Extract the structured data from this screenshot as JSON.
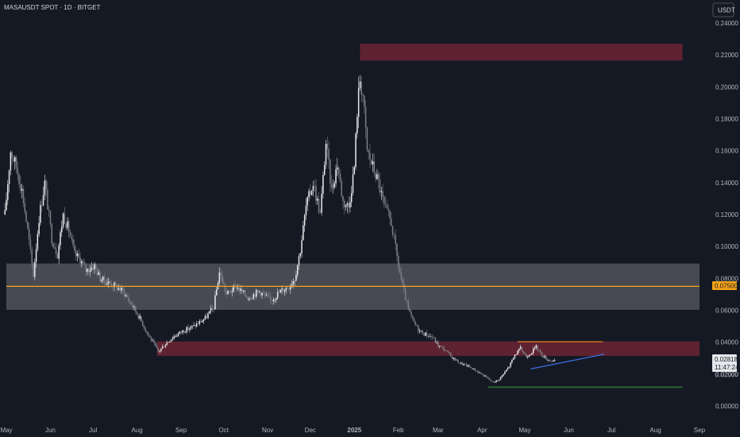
{
  "header": {
    "symbol_title": "MASAUSDT SPOT · 1D · BITGET",
    "currency_button": "USDT"
  },
  "price_tags": {
    "level_label": "0.07500",
    "last_price": "0.02818",
    "countdown": "11:47:24",
    "partial_label": "0.02000"
  },
  "colors": {
    "background": "#151924",
    "candle_up": "#e9e9ec",
    "candle_down": "#7c7f88",
    "resistance_zone": "#9c2a3c",
    "support_zone": "#5d6068",
    "level_line": "#f6a418",
    "trend_line": "#3b6fe0",
    "triangle_top": "#f08a24",
    "support_line": "#2e6a35"
  },
  "chart_data": {
    "type": "candlestick",
    "title": "MASAUSDT SPOT · 1D · BITGET",
    "ylim": [
      -0.005,
      0.245
    ],
    "y_ticks": [
      "0.24000",
      "0.22000",
      "0.20000",
      "0.18000",
      "0.16000",
      "0.14000",
      "0.12000",
      "0.10000",
      "0.08000",
      "0.06000",
      "0.04000",
      "0.02000",
      "0.00000"
    ],
    "x_ticks": [
      {
        "label": "May",
        "date": "2024-05-01"
      },
      {
        "label": "Jun",
        "date": "2024-06-01"
      },
      {
        "label": "Jul",
        "date": "2024-07-01"
      },
      {
        "label": "Aug",
        "date": "2024-08-01"
      },
      {
        "label": "Sep",
        "date": "2024-09-01"
      },
      {
        "label": "Oct",
        "date": "2024-10-01"
      },
      {
        "label": "Nov",
        "date": "2024-11-01"
      },
      {
        "label": "Dec",
        "date": "2024-12-01"
      },
      {
        "label": "2025",
        "date": "2025-01-01",
        "bold": true
      },
      {
        "label": "Feb",
        "date": "2025-02-01"
      },
      {
        "label": "Mar",
        "date": "2025-03-01"
      },
      {
        "label": "Apr",
        "date": "2025-04-01"
      },
      {
        "label": "May",
        "date": "2025-05-01"
      },
      {
        "label": "Jun",
        "date": "2025-06-01"
      },
      {
        "label": "Jul",
        "date": "2025-07-01"
      },
      {
        "label": "Aug",
        "date": "2025-08-01"
      },
      {
        "label": "Sep",
        "date": "2025-09-01"
      }
    ],
    "start_date": "2024-04-30",
    "end_date": "2025-05-22",
    "close_path": [
      [
        "2024-04-30",
        0.12
      ],
      [
        "2024-05-04",
        0.16
      ],
      [
        "2024-05-08",
        0.15
      ],
      [
        "2024-05-12",
        0.135
      ],
      [
        "2024-05-16",
        0.11
      ],
      [
        "2024-05-20",
        0.082
      ],
      [
        "2024-05-24",
        0.118
      ],
      [
        "2024-05-28",
        0.14
      ],
      [
        "2024-06-02",
        0.105
      ],
      [
        "2024-06-06",
        0.095
      ],
      [
        "2024-06-10",
        0.12
      ],
      [
        "2024-06-14",
        0.11
      ],
      [
        "2024-06-18",
        0.095
      ],
      [
        "2024-06-22",
        0.092
      ],
      [
        "2024-06-26",
        0.085
      ],
      [
        "2024-07-02",
        0.088
      ],
      [
        "2024-07-06",
        0.08
      ],
      [
        "2024-07-10",
        0.078
      ],
      [
        "2024-07-15",
        0.076
      ],
      [
        "2024-07-22",
        0.072
      ],
      [
        "2024-07-28",
        0.064
      ],
      [
        "2024-08-03",
        0.055
      ],
      [
        "2024-08-08",
        0.046
      ],
      [
        "2024-08-12",
        0.04
      ],
      [
        "2024-08-16",
        0.034
      ],
      [
        "2024-08-20",
        0.038
      ],
      [
        "2024-08-26",
        0.043
      ],
      [
        "2024-09-02",
        0.047
      ],
      [
        "2024-09-10",
        0.05
      ],
      [
        "2024-09-18",
        0.055
      ],
      [
        "2024-09-24",
        0.062
      ],
      [
        "2024-09-28",
        0.084
      ],
      [
        "2024-10-03",
        0.07
      ],
      [
        "2024-10-10",
        0.075
      ],
      [
        "2024-10-18",
        0.068
      ],
      [
        "2024-10-26",
        0.072
      ],
      [
        "2024-11-03",
        0.066
      ],
      [
        "2024-11-10",
        0.072
      ],
      [
        "2024-11-16",
        0.075
      ],
      [
        "2024-11-20",
        0.08
      ],
      [
        "2024-11-24",
        0.098
      ],
      [
        "2024-11-28",
        0.125
      ],
      [
        "2024-12-03",
        0.14
      ],
      [
        "2024-12-08",
        0.12
      ],
      [
        "2024-12-12",
        0.165
      ],
      [
        "2024-12-16",
        0.135
      ],
      [
        "2024-12-20",
        0.152
      ],
      [
        "2024-12-24",
        0.128
      ],
      [
        "2024-12-28",
        0.125
      ],
      [
        "2025-01-01",
        0.15
      ],
      [
        "2025-01-03",
        0.185
      ],
      [
        "2025-01-05",
        0.205
      ],
      [
        "2025-01-07",
        0.195
      ],
      [
        "2025-01-10",
        0.16
      ],
      [
        "2025-01-14",
        0.15
      ],
      [
        "2025-01-18",
        0.14
      ],
      [
        "2025-01-22",
        0.125
      ],
      [
        "2025-01-27",
        0.115
      ],
      [
        "2025-02-01",
        0.088
      ],
      [
        "2025-02-04",
        0.075
      ],
      [
        "2025-02-08",
        0.06
      ],
      [
        "2025-02-12",
        0.052
      ],
      [
        "2025-02-16",
        0.047
      ],
      [
        "2025-02-20",
        0.045
      ],
      [
        "2025-02-25",
        0.043
      ],
      [
        "2025-03-01",
        0.038
      ],
      [
        "2025-03-06",
        0.035
      ],
      [
        "2025-03-10",
        0.031
      ],
      [
        "2025-03-16",
        0.027
      ],
      [
        "2025-03-22",
        0.025
      ],
      [
        "2025-03-28",
        0.022
      ],
      [
        "2025-04-04",
        0.018
      ],
      [
        "2025-04-08",
        0.015
      ],
      [
        "2025-04-12",
        0.016
      ],
      [
        "2025-04-16",
        0.02
      ],
      [
        "2025-04-20",
        0.025
      ],
      [
        "2025-04-24",
        0.032
      ],
      [
        "2025-04-28",
        0.036
      ],
      [
        "2025-05-02",
        0.031
      ],
      [
        "2025-05-06",
        0.034
      ],
      [
        "2025-05-09",
        0.037
      ],
      [
        "2025-05-13",
        0.032
      ],
      [
        "2025-05-17",
        0.029
      ],
      [
        "2025-05-22",
        0.028
      ]
    ],
    "zones": [
      {
        "kind": "resistance",
        "from": "2025-01-05",
        "to": "2025-08-20",
        "y_top": 0.227,
        "y_bottom": 0.2165
      },
      {
        "kind": "support",
        "from": "2024-05-01",
        "to": "2025-09-01",
        "y_top": 0.0893,
        "y_bottom": 0.0603
      },
      {
        "kind": "resistance",
        "from": "2024-08-15",
        "to": "2025-09-01",
        "y_top": 0.0405,
        "y_bottom": 0.0314
      }
    ],
    "lines": [
      {
        "kind": "level",
        "from": "2024-05-01",
        "to": "2025-09-01",
        "y0": 0.075,
        "y1": 0.075
      },
      {
        "kind": "triangle_top",
        "from": "2025-04-26",
        "to": "2025-06-25",
        "y0": 0.0403,
        "y1": 0.0403
      },
      {
        "kind": "trend",
        "from": "2025-05-05",
        "to": "2025-06-26",
        "y0": 0.0232,
        "y1": 0.0325
      },
      {
        "kind": "support",
        "from": "2025-04-05",
        "to": "2025-08-20",
        "y0": 0.0118,
        "y1": 0.0118
      }
    ]
  }
}
